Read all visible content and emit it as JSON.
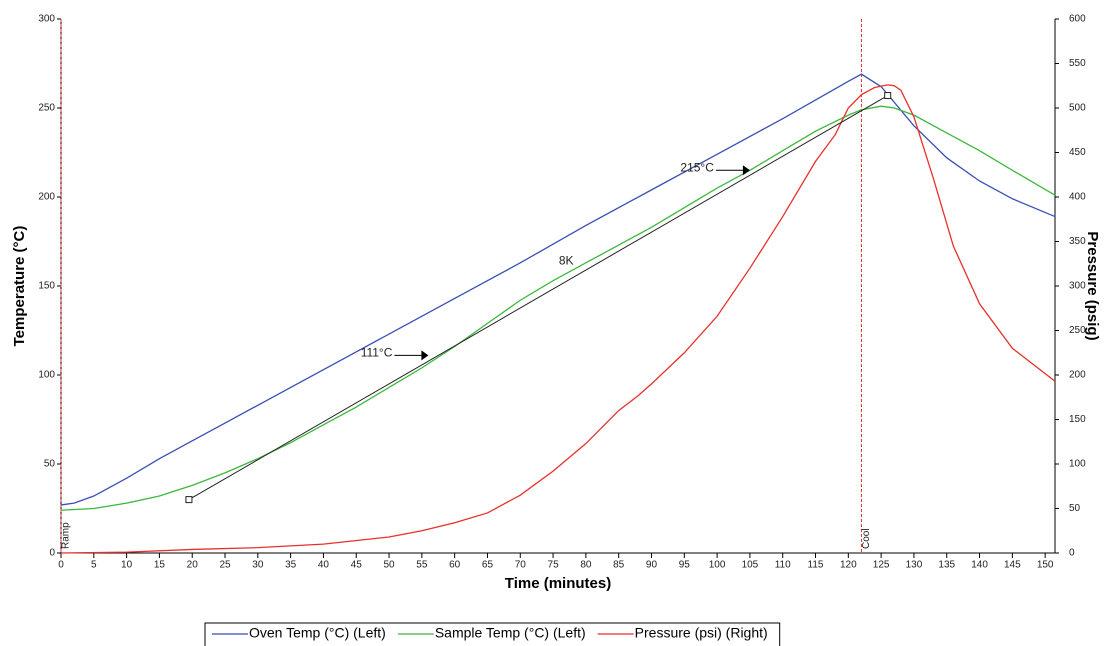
{
  "chart_data": {
    "type": "line",
    "x_label": "Time (minutes)",
    "y_label": "Temperature (°C)",
    "y2_label": "Pressure (psig)",
    "xlim": [
      0,
      151.5
    ],
    "ylim": [
      0,
      300
    ],
    "y2lim": [
      0,
      600
    ],
    "xticks": [
      0,
      5,
      10,
      15,
      20,
      25,
      30,
      35,
      40,
      45,
      50,
      55,
      60,
      65,
      70,
      75,
      80,
      85,
      90,
      95,
      100,
      105,
      110,
      115,
      120,
      125,
      130,
      135,
      140,
      145,
      150
    ],
    "yticks": [
      0,
      50,
      100,
      150,
      200,
      250,
      300
    ],
    "y2ticks": [
      0,
      50,
      100,
      150,
      200,
      250,
      300,
      350,
      400,
      450,
      500,
      550,
      600
    ],
    "legend": "bottom",
    "series": [
      {
        "name": "Oven Temp (°C) (Left)",
        "color": "#3a4fb5",
        "x": [
          0,
          2,
          5,
          10,
          15,
          20,
          25,
          30,
          40,
          50,
          60,
          70,
          80,
          90,
          100,
          110,
          120,
          122,
          125,
          130,
          135,
          140,
          145,
          151.5
        ],
        "values": [
          27,
          28,
          32,
          42,
          53,
          63,
          73,
          83,
          103,
          123,
          143,
          163,
          184,
          204,
          224,
          244,
          265,
          269,
          262,
          240,
          222,
          209,
          199,
          189
        ]
      },
      {
        "name": "Sample Temp (°C) (Left)",
        "color": "#3cb83c",
        "x": [
          0,
          5,
          10,
          15,
          20,
          25,
          30,
          35,
          40,
          45,
          50,
          55,
          60,
          65,
          70,
          75,
          80,
          85,
          90,
          95,
          100,
          105,
          110,
          115,
          120,
          122,
          125,
          127,
          130,
          135,
          140,
          145,
          151.5
        ],
        "values": [
          24,
          25,
          28,
          32,
          38,
          45,
          53,
          62,
          72,
          82,
          93,
          104,
          116,
          129,
          142,
          153,
          163,
          173,
          183,
          194,
          205,
          215,
          226,
          237,
          246,
          249,
          251,
          250,
          246,
          236,
          226,
          215,
          201
        ]
      },
      {
        "name": "Pressure (psi) (Right)",
        "color": "#e8302a",
        "axis": "y2",
        "x": [
          0,
          10,
          20,
          30,
          40,
          50,
          55,
          60,
          65,
          70,
          75,
          80,
          85,
          88,
          90,
          95,
          100,
          105,
          110,
          115,
          118,
          120,
          122,
          124,
          126,
          127,
          128,
          130,
          133,
          136,
          140,
          145,
          151.5
        ],
        "values": [
          0,
          1,
          4,
          6,
          10,
          18,
          25,
          34,
          45,
          65,
          92,
          123,
          160,
          177,
          190,
          225,
          266,
          320,
          378,
          440,
          470,
          500,
          515,
          523,
          526,
          525,
          520,
          490,
          420,
          345,
          280,
          230,
          193
        ]
      }
    ],
    "fit": {
      "x": [
        19.5,
        126
      ],
      "y": [
        30,
        257
      ]
    },
    "annotations": [
      {
        "text": "111°C",
        "x": 56,
        "y": 111,
        "arrow": true
      },
      {
        "text": "215°C",
        "x": 105,
        "y": 215,
        "arrow": true
      },
      {
        "text": "8K",
        "x": 77,
        "y": 164,
        "arrow": false
      }
    ],
    "events": [
      {
        "label": "Ramp",
        "x": 0
      },
      {
        "label": "Cool",
        "x": 122
      }
    ]
  }
}
